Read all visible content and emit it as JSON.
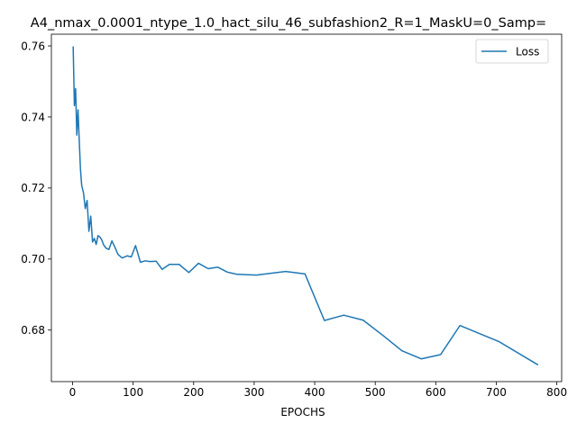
{
  "chart_data": {
    "type": "line",
    "title": "A4_nmax_0.0001_ntype_1.0_hact_silu_46_subfashion2_R=1_MaskU=0_Samp=",
    "xlabel": "EPOCHS",
    "ylabel": "",
    "xlim": [
      -35,
      808
    ],
    "ylim": [
      0.6655,
      0.7633
    ],
    "xticks": [
      0,
      100,
      200,
      300,
      400,
      500,
      600,
      700,
      800
    ],
    "yticks": [
      0.68,
      0.7,
      0.72,
      0.74,
      0.76
    ],
    "ytick_labels": [
      "0.68",
      "0.70",
      "0.72",
      "0.74",
      "0.76"
    ],
    "legend": {
      "position": "top-right",
      "entries": [
        "Loss"
      ]
    },
    "grid": false,
    "series": [
      {
        "name": "Loss",
        "color": "#1f77b4",
        "x": [
          1,
          3,
          5,
          7,
          9,
          11,
          13,
          15,
          18,
          21,
          24,
          27,
          30,
          33,
          36,
          39,
          42,
          45,
          48,
          51,
          55,
          60,
          65,
          70,
          75,
          82,
          90,
          97,
          104,
          112,
          120,
          128,
          138,
          148,
          160,
          176,
          192,
          208,
          224,
          240,
          256,
          272,
          288,
          304,
          352,
          384,
          416,
          448,
          480,
          512,
          544,
          576,
          608,
          640,
          704,
          768
        ],
        "y": [
          0.7597,
          0.7432,
          0.748,
          0.7349,
          0.742,
          0.7335,
          0.7254,
          0.7208,
          0.7187,
          0.7142,
          0.7165,
          0.7078,
          0.7121,
          0.7048,
          0.7058,
          0.7041,
          0.7066,
          0.7062,
          0.7055,
          0.7041,
          0.7031,
          0.7027,
          0.7051,
          0.7033,
          0.7013,
          0.7003,
          0.7009,
          0.7006,
          0.7038,
          0.6991,
          0.6995,
          0.6993,
          0.6994,
          0.6971,
          0.6985,
          0.6985,
          0.6962,
          0.6988,
          0.6973,
          0.6977,
          0.6963,
          0.6957,
          0.6956,
          0.6955,
          0.6965,
          0.6958,
          0.6827,
          0.6842,
          0.6828,
          0.6786,
          0.6742,
          0.6719,
          0.6731,
          0.6813,
          0.6768,
          0.6703
        ]
      }
    ]
  }
}
